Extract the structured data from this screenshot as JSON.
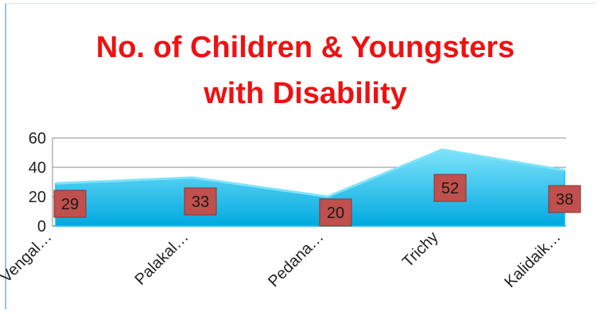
{
  "chart_data": {
    "type": "area",
    "title_lines": [
      "No. of Children & Youngsters",
      "with Disability"
    ],
    "categories": [
      "Vengal…",
      "Palakal…",
      "Pedana…",
      "Trichy",
      "Kalidaik…"
    ],
    "values": [
      29,
      33,
      20,
      52,
      38
    ],
    "data_labels": [
      "29",
      "33",
      "20",
      "52",
      "38"
    ],
    "ylim": [
      0,
      60
    ],
    "yticks": [
      0,
      20,
      40,
      60
    ],
    "ytick_labels": [
      "0",
      "20",
      "40",
      "60"
    ],
    "grid": true,
    "legend": "none",
    "colors": {
      "title": "#ee1111",
      "area_top": "#7fe3fb",
      "area_bottom": "#00a9e0",
      "area_edge": "#00c8f5",
      "label_box": "#c0504d",
      "gridline": "#8c8c8c"
    }
  }
}
